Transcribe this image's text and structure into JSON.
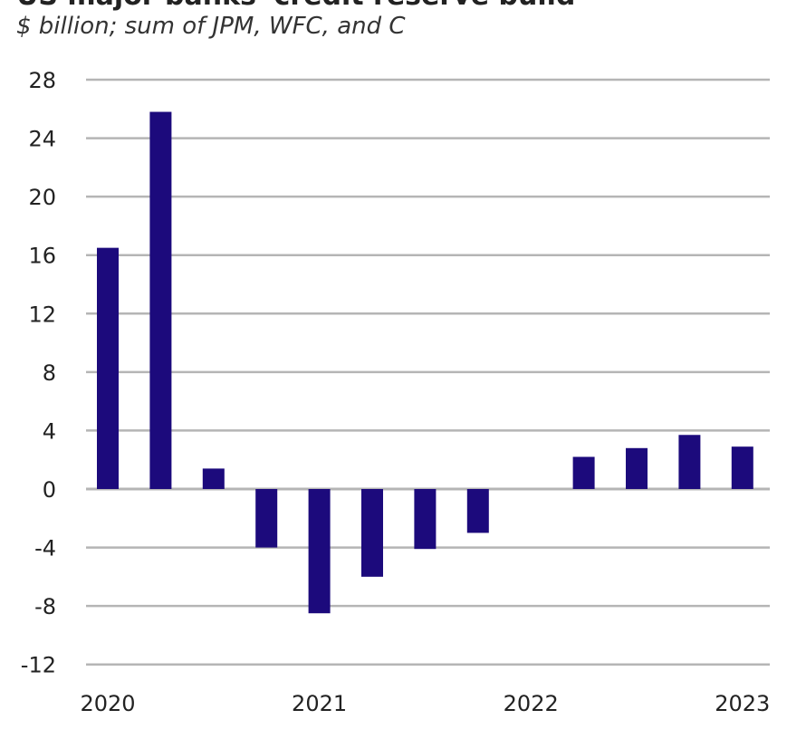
{
  "chart_data": {
    "type": "bar",
    "title": "US major banks' credit reserve build",
    "subtitle": "$ billion; sum of JPM, WFC, and C",
    "categories": [
      "2020 Q1",
      "2020 Q2",
      "2020 Q3",
      "2020 Q4",
      "2021 Q1",
      "2021 Q2",
      "2021 Q3",
      "2021 Q4",
      "2022 Q1",
      "2022 Q2",
      "2022 Q3",
      "2022 Q4",
      "2023 Q1"
    ],
    "values": [
      16.5,
      25.8,
      1.4,
      -4.0,
      -8.5,
      -6.0,
      -4.1,
      -3.0,
      0,
      2.2,
      2.8,
      3.7,
      2.9
    ],
    "x_tick_labels": [
      {
        "index": 0,
        "label": "2020"
      },
      {
        "index": 4,
        "label": "2021"
      },
      {
        "index": 8,
        "label": "2022"
      },
      {
        "index": 12,
        "label": "2023"
      }
    ],
    "y_ticks": [
      28,
      24,
      20,
      16,
      12,
      8,
      4,
      0,
      -4,
      -8,
      -12
    ],
    "ylim": [
      -12,
      28
    ],
    "xlabel": "",
    "ylabel": "",
    "grid": true,
    "bar_color": "#1c0a7c",
    "grid_color": "#b5b5b5"
  }
}
